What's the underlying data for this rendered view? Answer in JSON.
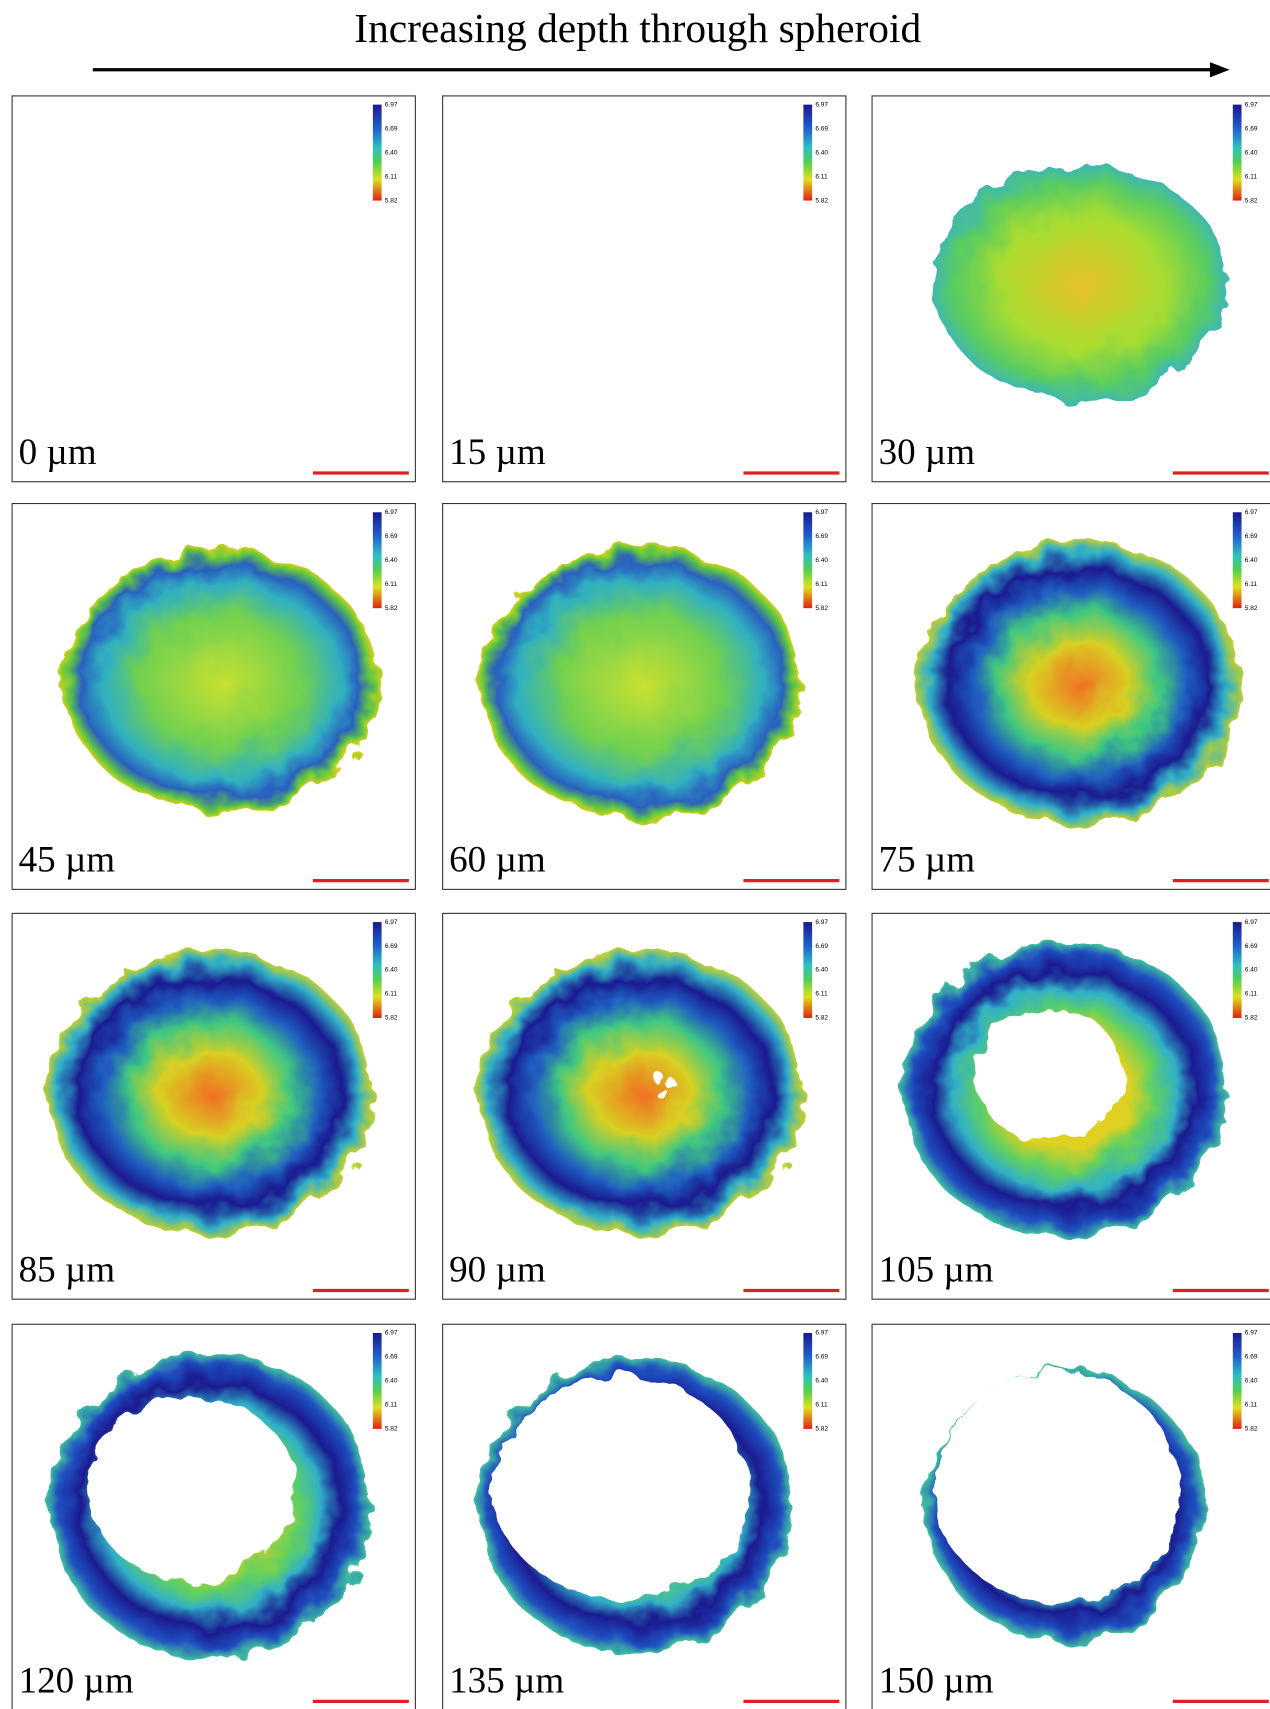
{
  "title": "Increasing depth through spheroid",
  "colorbar": {
    "ticks": [
      "6.97",
      "6.69",
      "6.40",
      "6.11",
      "5.82"
    ]
  },
  "panels": [
    {
      "label": "0 µm"
    },
    {
      "label": "15 µm"
    },
    {
      "label": "30 µm"
    },
    {
      "label": "45 µm"
    },
    {
      "label": "60 µm"
    },
    {
      "label": "75 µm"
    },
    {
      "label": "85 µm"
    },
    {
      "label": "90 µm"
    },
    {
      "label": "105 µm"
    },
    {
      "label": "120 µm"
    },
    {
      "label": "135 µm"
    },
    {
      "label": "150 µm"
    }
  ]
}
